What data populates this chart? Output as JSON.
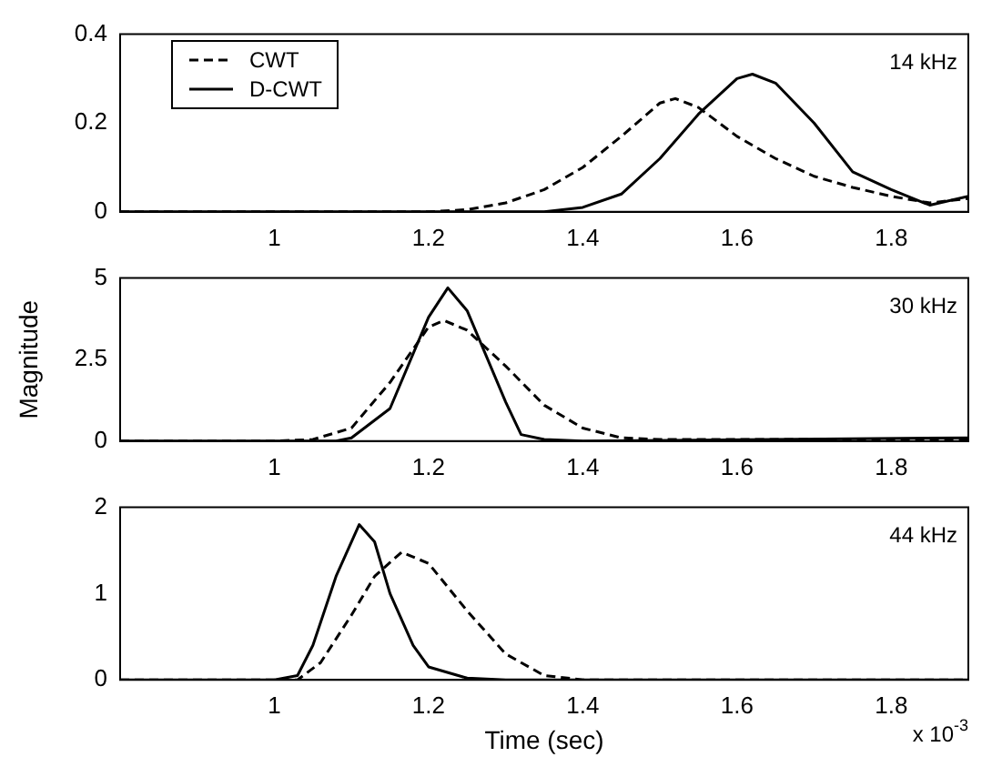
{
  "chart_data": [
    {
      "type": "line",
      "xlim": [
        0.8,
        1.9
      ],
      "xticks": [
        1,
        1.2,
        1.4,
        1.6,
        1.8
      ],
      "ylim": [
        0,
        0.4
      ],
      "yticks": [
        0,
        0.2,
        0.4
      ],
      "legend": "top left",
      "marker": "none",
      "annotations": [
        "14 kHz"
      ],
      "series": [
        {
          "name": "CWT",
          "color": "#000000",
          "line_style": "dashed",
          "x": [
            0.8,
            1.0,
            1.2,
            1.25,
            1.3,
            1.35,
            1.4,
            1.45,
            1.5,
            1.52,
            1.55,
            1.6,
            1.65,
            1.7,
            1.75,
            1.8,
            1.85,
            1.9
          ],
          "values": [
            0,
            0,
            0,
            0.005,
            0.02,
            0.05,
            0.1,
            0.17,
            0.245,
            0.255,
            0.235,
            0.17,
            0.12,
            0.08,
            0.055,
            0.035,
            0.02,
            0.03
          ]
        },
        {
          "name": "D-CWT",
          "color": "#000000",
          "line_style": "solid",
          "x": [
            0.8,
            1.0,
            1.2,
            1.35,
            1.4,
            1.45,
            1.5,
            1.55,
            1.6,
            1.62,
            1.65,
            1.7,
            1.75,
            1.8,
            1.85,
            1.9
          ],
          "values": [
            0,
            0,
            0,
            0,
            0.01,
            0.04,
            0.12,
            0.22,
            0.3,
            0.31,
            0.29,
            0.2,
            0.09,
            0.05,
            0.015,
            0.035
          ]
        }
      ]
    },
    {
      "type": "line",
      "xlim": [
        0.8,
        1.9
      ],
      "xticks": [
        1,
        1.2,
        1.4,
        1.6,
        1.8
      ],
      "ylim": [
        0,
        5
      ],
      "yticks": [
        0,
        2.5,
        5
      ],
      "ylabel": "Magnitude",
      "marker": "none",
      "annotations": [
        "30 kHz"
      ],
      "series": [
        {
          "color": "#000000",
          "line_style": "dashed",
          "x": [
            0.8,
            1.0,
            1.05,
            1.1,
            1.15,
            1.2,
            1.22,
            1.25,
            1.3,
            1.35,
            1.4,
            1.45,
            1.5,
            1.9
          ],
          "values": [
            0,
            0,
            0.05,
            0.4,
            1.8,
            3.5,
            3.7,
            3.4,
            2.3,
            1.1,
            0.4,
            0.1,
            0.05,
            0.05
          ]
        },
        {
          "color": "#000000",
          "line_style": "solid",
          "x": [
            0.8,
            1.0,
            1.08,
            1.1,
            1.15,
            1.2,
            1.225,
            1.25,
            1.3,
            1.32,
            1.35,
            1.4,
            1.9
          ],
          "values": [
            0,
            0,
            0,
            0.1,
            1.0,
            3.8,
            4.7,
            4.0,
            1.2,
            0.2,
            0.05,
            0,
            0.1
          ]
        }
      ]
    },
    {
      "type": "line",
      "xlim": [
        0.8,
        1.9
      ],
      "xticks": [
        1,
        1.2,
        1.4,
        1.6,
        1.8
      ],
      "ylim": [
        0,
        2
      ],
      "yticks": [
        0,
        1,
        2
      ],
      "xlabel": "Time (sec)",
      "marker": "none",
      "annotations": [
        "44 kHz",
        "x 10$^{-3}$"
      ],
      "series": [
        {
          "color": "#000000",
          "line_style": "dashed",
          "x": [
            0.8,
            1.0,
            1.03,
            1.06,
            1.1,
            1.13,
            1.165,
            1.2,
            1.25,
            1.3,
            1.35,
            1.4,
            1.9
          ],
          "values": [
            0,
            0,
            0,
            0.2,
            0.75,
            1.2,
            1.48,
            1.35,
            0.8,
            0.3,
            0.05,
            0,
            0
          ]
        },
        {
          "color": "#000000",
          "line_style": "solid",
          "x": [
            0.8,
            1.0,
            1.03,
            1.05,
            1.08,
            1.11,
            1.13,
            1.15,
            1.18,
            1.2,
            1.25,
            1.3,
            1.9
          ],
          "values": [
            0,
            0,
            0.05,
            0.4,
            1.2,
            1.8,
            1.6,
            1.0,
            0.4,
            0.15,
            0.02,
            0,
            0
          ]
        }
      ]
    }
  ]
}
